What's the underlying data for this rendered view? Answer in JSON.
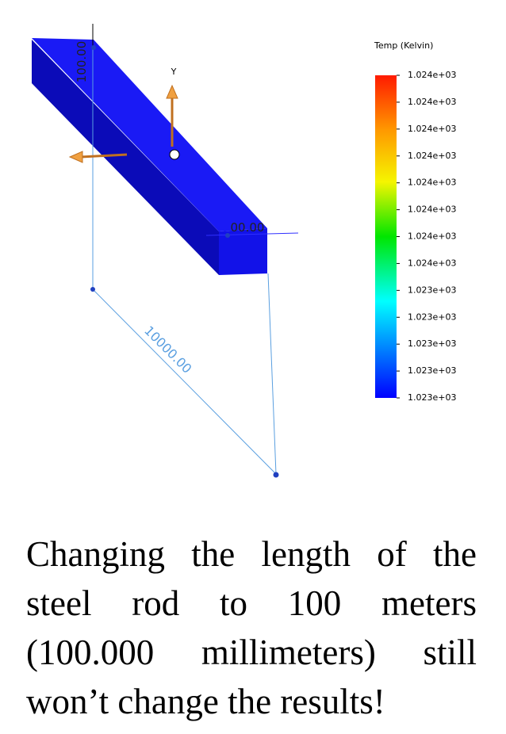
{
  "viewport": {
    "legend": {
      "title": "Temp (Kelvin)",
      "labels": [
        "1.024e+03",
        "1.024e+03",
        "1.024e+03",
        "1.024e+03",
        "1.024e+03",
        "1.024e+03",
        "1.024e+03",
        "1.024e+03",
        "1.023e+03",
        "1.023e+03",
        "1.023e+03",
        "1.023e+03",
        "1.023e+03"
      ]
    },
    "axis_label": "Y",
    "dimensions": [
      "100.00",
      "00.00",
      "10000.00"
    ]
  },
  "caption": {
    "lines": [
      "Changing the length of the",
      "steel rod to 100 meters",
      "(100.000 millimeters) still",
      "won’t change the results!"
    ]
  }
}
